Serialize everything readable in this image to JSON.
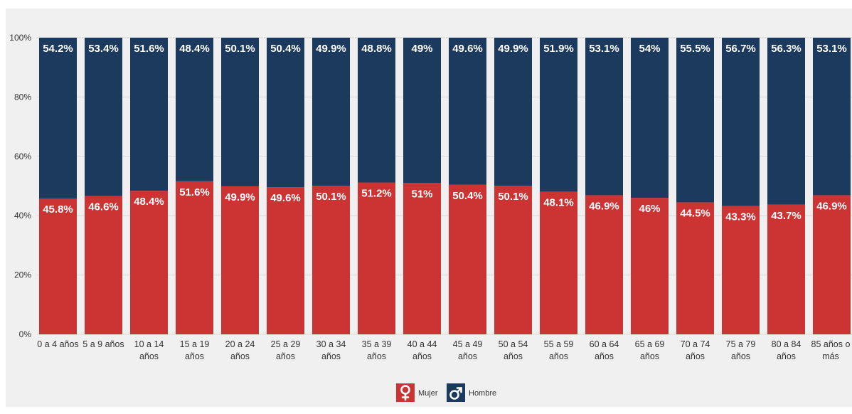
{
  "chart_data": {
    "type": "bar",
    "stacked": true,
    "categories": [
      [
        "0 a 4 años"
      ],
      [
        "5 a 9 años"
      ],
      [
        "10 a 14",
        "años"
      ],
      [
        "15 a 19",
        "años"
      ],
      [
        "20 a 24",
        "años"
      ],
      [
        "25 a 29",
        "años"
      ],
      [
        "30 a 34",
        "años"
      ],
      [
        "35 a 39",
        "años"
      ],
      [
        "40 a 44",
        "años"
      ],
      [
        "45 a 49",
        "años"
      ],
      [
        "50 a 54",
        "años"
      ],
      [
        "55 a 59",
        "años"
      ],
      [
        "60 a 64",
        "años"
      ],
      [
        "65 a 69",
        "años"
      ],
      [
        "70 a 74",
        "años"
      ],
      [
        "75 a 79",
        "años"
      ],
      [
        "80 a 84",
        "años"
      ],
      [
        "85 años o",
        "más"
      ]
    ],
    "series": [
      {
        "name": "Mujer",
        "color": "#cc3333",
        "values": [
          45.8,
          46.6,
          48.4,
          51.6,
          49.9,
          49.6,
          50.1,
          51.2,
          51,
          50.4,
          50.1,
          48.1,
          46.9,
          46,
          44.5,
          43.3,
          43.7,
          46.9
        ],
        "labels": [
          "45.8%",
          "46.6%",
          "48.4%",
          "51.6%",
          "49.9%",
          "49.6%",
          "50.1%",
          "51.2%",
          "51%",
          "50.4%",
          "50.1%",
          "48.1%",
          "46.9%",
          "46%",
          "44.5%",
          "43.3%",
          "43.7%",
          "46.9%"
        ]
      },
      {
        "name": "Hombre",
        "color": "#1b3a5e",
        "values": [
          54.2,
          53.4,
          51.6,
          48.4,
          50.1,
          50.4,
          49.9,
          48.8,
          49,
          49.6,
          49.9,
          51.9,
          53.1,
          54,
          55.5,
          56.7,
          56.3,
          53.1
        ],
        "labels": [
          "54.2%",
          "53.4%",
          "51.6%",
          "48.4%",
          "50.1%",
          "50.4%",
          "49.9%",
          "48.8%",
          "49%",
          "49.6%",
          "49.9%",
          "51.9%",
          "53.1%",
          "54%",
          "55.5%",
          "56.7%",
          "56.3%",
          "53.1%"
        ]
      }
    ],
    "y_ticks": [
      {
        "value": 0,
        "label": "0%"
      },
      {
        "value": 20,
        "label": "20%"
      },
      {
        "value": 40,
        "label": "40%"
      },
      {
        "value": 60,
        "label": "60%"
      },
      {
        "value": 80,
        "label": "80%"
      },
      {
        "value": 100,
        "label": "100%"
      }
    ],
    "ylim": [
      0,
      100
    ],
    "grid": true,
    "legend": {
      "placement": "bottom-center",
      "items": [
        {
          "label": "Mujer",
          "icon": "female-symbol-icon",
          "color": "#cc3333"
        },
        {
          "label": "Hombre",
          "icon": "male-symbol-icon",
          "color": "#1b3a5e"
        }
      ]
    },
    "background_color": "#f0f0f0",
    "grid_color": "#d8d8d8"
  }
}
